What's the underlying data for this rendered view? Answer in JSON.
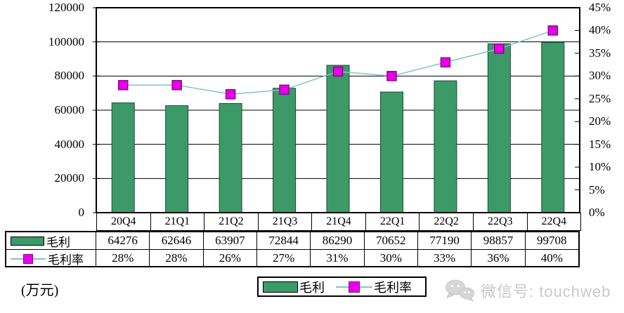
{
  "chart_data": {
    "type": "bar",
    "title": "",
    "categories": [
      "20Q4",
      "21Q1",
      "21Q2",
      "21Q3",
      "21Q4",
      "22Q1",
      "22Q2",
      "22Q3",
      "22Q4"
    ],
    "series": [
      {
        "name": "毛利",
        "type": "bar",
        "values": [
          64276,
          62646,
          63907,
          72844,
          86290,
          70652,
          77190,
          98857,
          99708
        ]
      },
      {
        "name": "毛利率",
        "type": "line",
        "unit": "%",
        "values": [
          28,
          28,
          26,
          27,
          31,
          30,
          33,
          36,
          40
        ]
      }
    ],
    "left_axis": {
      "min": 0,
      "max": 120000,
      "step": 20000,
      "labels": [
        "120000",
        "100000",
        "80000",
        "60000",
        "40000",
        "20000",
        "0"
      ]
    },
    "right_axis": {
      "min": 0,
      "max": 45,
      "step": 5,
      "labels": [
        "45%",
        "40%",
        "35%",
        "30%",
        "25%",
        "20%",
        "15%",
        "10%",
        "5%",
        "0%"
      ]
    },
    "grid": true,
    "legend_position": "bottom",
    "colors": {
      "bar_fill": "#3c9a68",
      "bar_border": "#1c4a31",
      "marker_fill": "#e800e8",
      "marker_border": "#8d008d",
      "line": "#82c3c8",
      "grid": "#000000",
      "watermark": "#c9c9c9"
    }
  },
  "table": {
    "row_labels": [
      "毛利",
      "毛利率"
    ],
    "rows": [
      [
        "64276",
        "62646",
        "63907",
        "72844",
        "86290",
        "70652",
        "77190",
        "98857",
        "99708"
      ],
      [
        "28%",
        "28%",
        "26%",
        "27%",
        "31%",
        "30%",
        "33%",
        "36%",
        "40%"
      ]
    ]
  },
  "footer": {
    "unit_label": "(万元)",
    "legend": {
      "bar_label": "毛利",
      "line_label": "毛利率"
    },
    "watermark": {
      "icon": "wechat-icon",
      "text": "微信号: touchweb"
    }
  }
}
